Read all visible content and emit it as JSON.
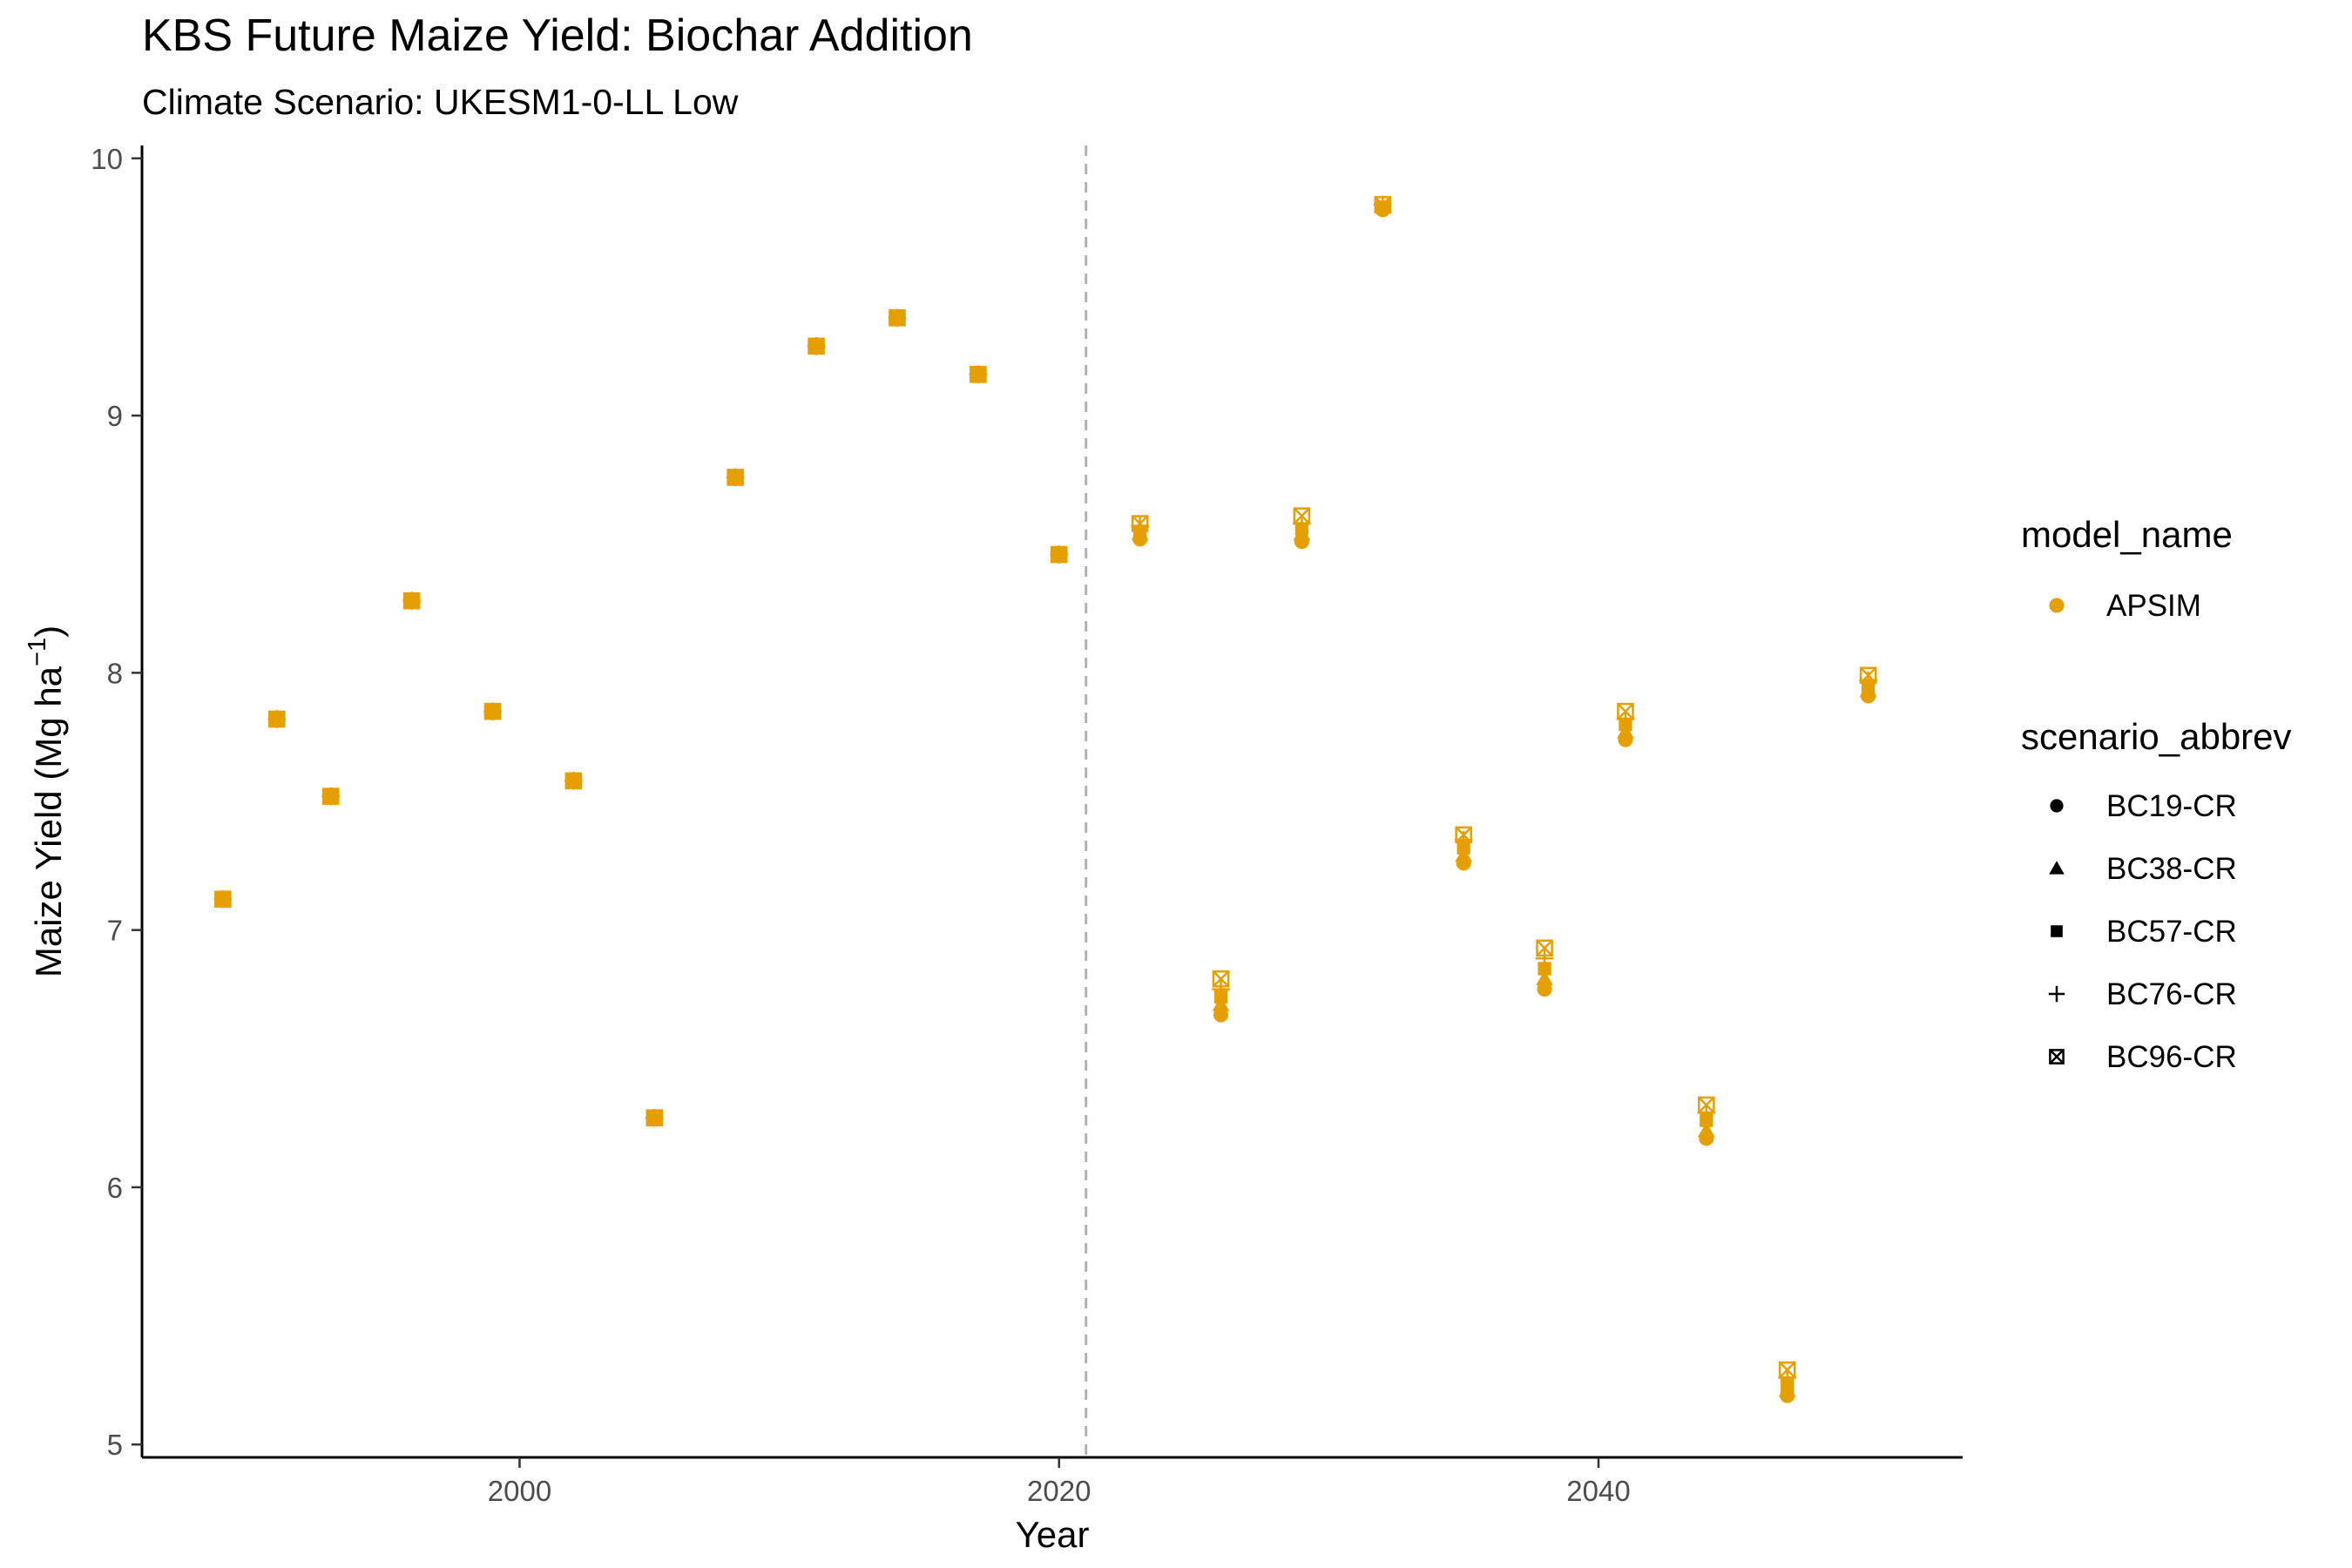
{
  "chart_data": {
    "type": "scatter",
    "title": "KBS Future Maize Yield: Biochar Addition",
    "subtitle": "Climate Scenario: UKESM1-0-LL Low",
    "xlabel": "Year",
    "ylabel": "Maize Yield (Mg ha",
    "ylabel_superscript": "−1",
    "ylabel_close": ")",
    "xlim": [
      1986,
      2053.5
    ],
    "ylim": [
      4.95,
      10.05
    ],
    "xticks": [
      2000,
      2020,
      2040
    ],
    "yticks": [
      5,
      6,
      7,
      8,
      9,
      10
    ],
    "grid": false,
    "reference_line": {
      "x": 2021,
      "style": "dashed",
      "color": "#b0b0b0"
    },
    "point_color": "#E69F00",
    "legend": {
      "placement": "right",
      "color_title": "model_name",
      "color_items": [
        {
          "label": "APSIM",
          "color": "#E69F00"
        }
      ],
      "shape_title": "scenario_abbrev",
      "shape_items": [
        {
          "label": "BC19-CR",
          "shape": "circle"
        },
        {
          "label": "BC38-CR",
          "shape": "triangle"
        },
        {
          "label": "BC57-CR",
          "shape": "square"
        },
        {
          "label": "BC76-CR",
          "shape": "plus"
        },
        {
          "label": "BC96-CR",
          "shape": "square-cross"
        }
      ]
    },
    "x": [
      1989,
      1991,
      1993,
      1996,
      1999,
      2002,
      2005,
      2008,
      2011,
      2014,
      2017,
      2020,
      2023,
      2026,
      2029,
      2032,
      2035,
      2038,
      2041,
      2044,
      2047,
      2050
    ],
    "series": [
      {
        "name": "BC19-CR",
        "shape": "circle",
        "values": [
          7.12,
          7.82,
          7.52,
          8.28,
          7.85,
          7.58,
          6.27,
          8.76,
          9.27,
          9.38,
          9.16,
          8.46,
          8.52,
          6.67,
          8.51,
          9.8,
          7.26,
          6.77,
          7.74,
          6.19,
          5.19,
          7.91
        ]
      },
      {
        "name": "BC38-CR",
        "shape": "triangle",
        "values": [
          7.12,
          7.82,
          7.52,
          8.28,
          7.85,
          7.58,
          6.27,
          8.76,
          9.27,
          9.38,
          9.16,
          8.46,
          8.54,
          6.71,
          8.54,
          9.81,
          7.29,
          6.81,
          7.77,
          6.22,
          5.21,
          7.93
        ]
      },
      {
        "name": "BC57-CR",
        "shape": "square",
        "values": [
          7.12,
          7.82,
          7.52,
          8.28,
          7.85,
          7.58,
          6.27,
          8.76,
          9.27,
          9.38,
          9.16,
          8.46,
          8.55,
          6.74,
          8.56,
          9.81,
          7.32,
          6.85,
          7.8,
          6.26,
          5.23,
          7.95
        ]
      },
      {
        "name": "BC76-CR",
        "shape": "plus",
        "values": [
          7.12,
          7.82,
          7.52,
          8.28,
          7.85,
          7.58,
          6.27,
          8.76,
          9.27,
          9.38,
          9.16,
          8.46,
          8.57,
          6.77,
          8.58,
          9.82,
          7.35,
          6.89,
          7.82,
          6.29,
          5.26,
          7.97
        ]
      },
      {
        "name": "BC96-CR",
        "shape": "square-cross",
        "values": [
          7.12,
          7.82,
          7.52,
          8.28,
          7.85,
          7.58,
          6.27,
          8.76,
          9.27,
          9.38,
          9.16,
          8.46,
          8.58,
          6.81,
          8.61,
          9.82,
          7.37,
          6.93,
          7.85,
          6.32,
          5.29,
          7.99
        ]
      }
    ]
  }
}
